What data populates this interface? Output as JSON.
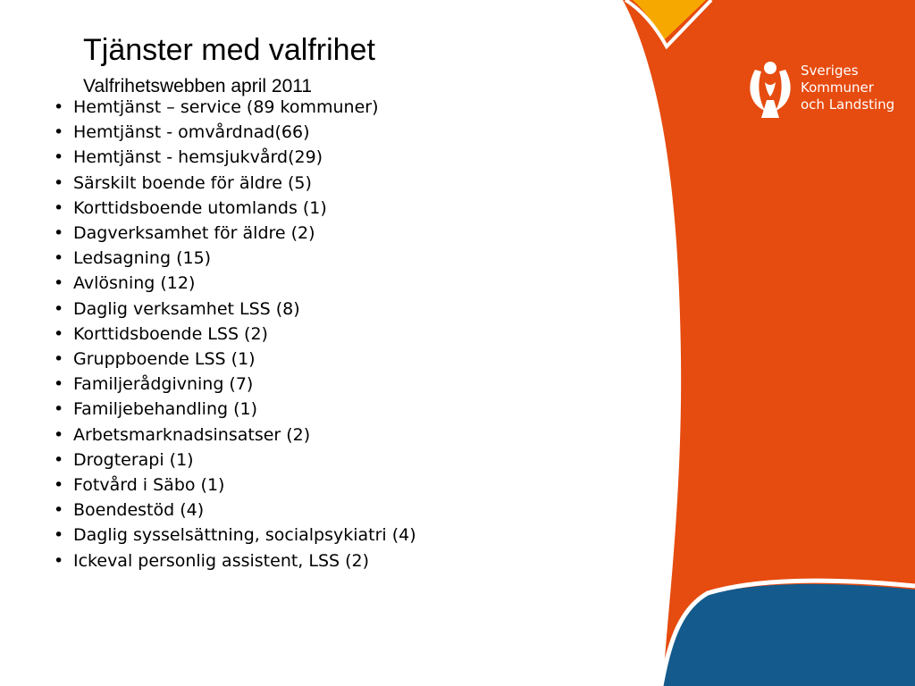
{
  "slide": {
    "title": "Tjänster med valfrihet",
    "subtitle": "Valfrihetswebben april 2011",
    "bullet_char": "•",
    "items": [
      "Hemtjänst – service (89 kommuner)",
      "Hemtjänst - omvårdnad(66)",
      "Hemtjänst - hemsjukvård(29)",
      "Särskilt boende för äldre (5)",
      "Korttidsboende utomlands (1)",
      "Dagverksamhet för äldre (2)",
      "Ledsagning (15)",
      "Avlösning (12)",
      "Daglig verksamhet LSS (8)",
      "Korttidsboende LSS (2)",
      "Gruppboende LSS (1)",
      "Familjerådgivning (7)",
      "Familjebehandling (1)",
      "Arbetsmarknadsinsatser (2)",
      "Drogterapi (1)",
      "Fotvård i Säbo (1)",
      "Boendestöd (4)",
      "Daglig sysselsättning, socialpsykiatri (4)",
      "Ickeval personlig assistent, LSS (2)"
    ]
  },
  "logo": {
    "icon": "skl-figure-logo-icon",
    "lines": [
      "Sveriges",
      "Kommuner",
      "och Landsting"
    ]
  },
  "colors": {
    "orange": "#E64B0F",
    "yellow": "#F7A800",
    "blue": "#145A8C",
    "text": "#000000"
  }
}
